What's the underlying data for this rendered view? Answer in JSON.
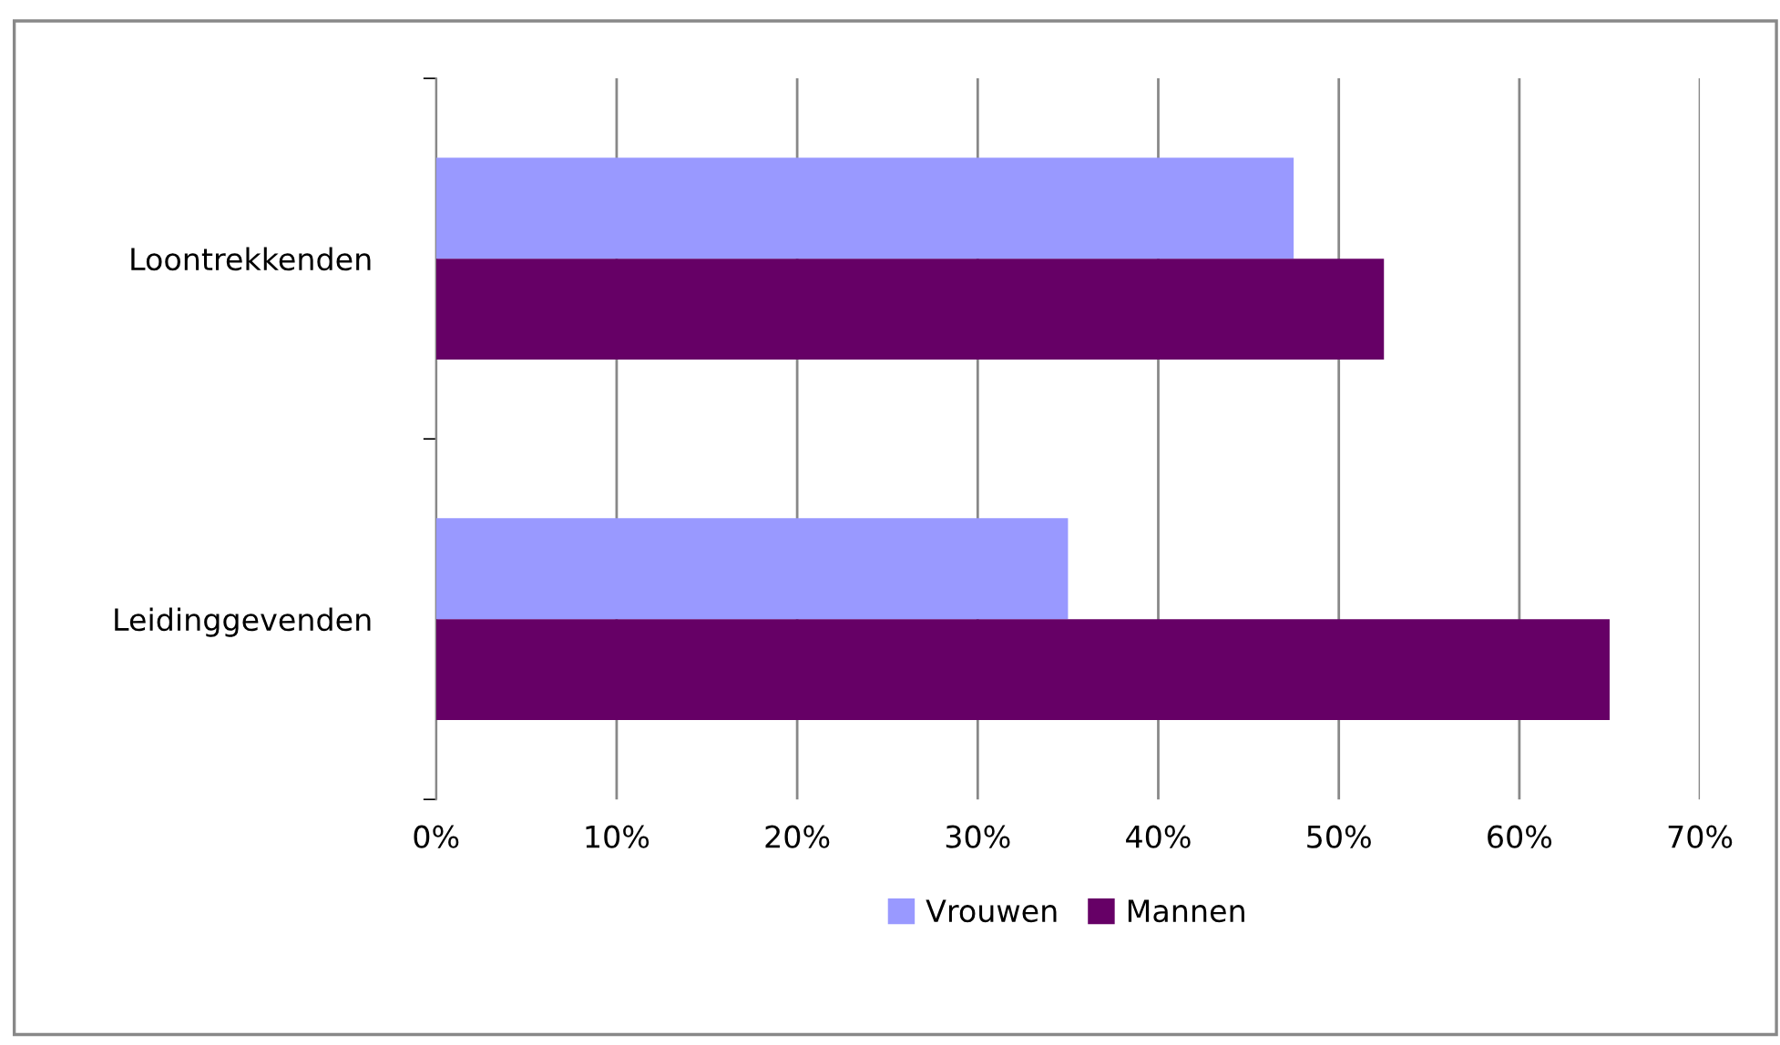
{
  "chart_data": {
    "type": "bar",
    "orientation": "horizontal",
    "categories": [
      "Loontrekkenden",
      "Leidinggevenden"
    ],
    "series": [
      {
        "name": "Vrouwen",
        "color": "#9999ff",
        "values": [
          47.5,
          35
        ]
      },
      {
        "name": "Mannen",
        "color": "#660066",
        "values": [
          52.5,
          65
        ]
      }
    ],
    "xlim": [
      0,
      70
    ],
    "xticks": [
      {
        "value": 0,
        "label": "0%"
      },
      {
        "value": 10,
        "label": "10%"
      },
      {
        "value": 20,
        "label": "20%"
      },
      {
        "value": 30,
        "label": "30%"
      },
      {
        "value": 40,
        "label": "40%"
      },
      {
        "value": 50,
        "label": "50%"
      },
      {
        "value": 60,
        "label": "60%"
      },
      {
        "value": 70,
        "label": "70%"
      }
    ],
    "grid": "x",
    "legend": "bottom"
  }
}
